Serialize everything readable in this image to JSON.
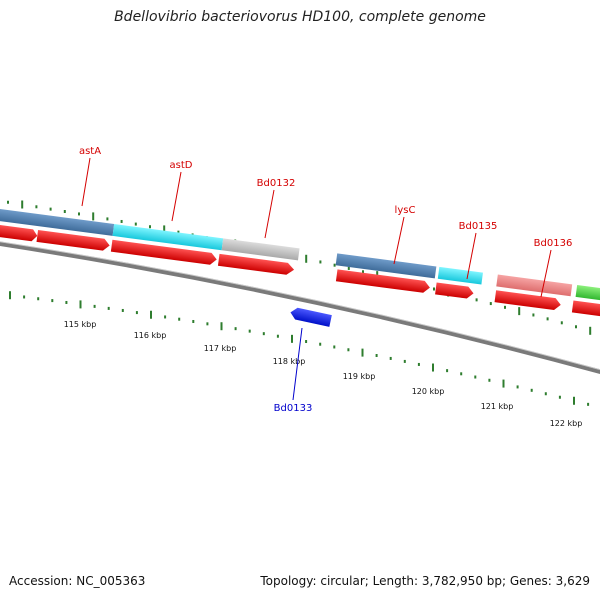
{
  "title": "Bdellovibrio bacteriovorus HD100, complete genome",
  "accession": "Accession: NC_005363",
  "summary": "Topology: circular; Length: 3,782,950 bp; Genes: 3,629",
  "colors": {
    "forward_label": "#d40000",
    "reverse_label": "#0000cc",
    "cds_arrow": "#ee0000",
    "reverse_arrow": "#0a14dd",
    "backbone": "#7a7a7a",
    "tick_green": "#2e7d2e"
  },
  "tick_labels": [
    "115 kbp",
    "116 kbp",
    "117 kbp",
    "118 kbp",
    "119 kbp",
    "120 kbp",
    "121 kbp",
    "122 kbp"
  ],
  "gene_labels": [
    {
      "text": "astA",
      "strand": "forward"
    },
    {
      "text": "astD",
      "strand": "forward"
    },
    {
      "text": "Bd0132",
      "strand": "forward"
    },
    {
      "text": "lysC",
      "strand": "forward"
    },
    {
      "text": "Bd0135",
      "strand": "forward"
    },
    {
      "text": "Bd0136",
      "strand": "forward"
    },
    {
      "text": "Bd0133",
      "strand": "reverse"
    }
  ]
}
